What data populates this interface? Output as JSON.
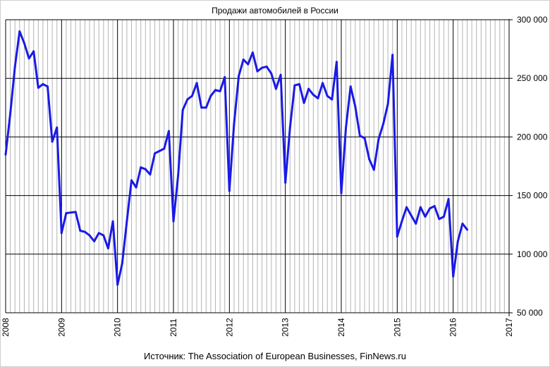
{
  "chart_data": {
    "type": "line",
    "title": "Продажи  автомобилей в России",
    "source": "Источник: The Association of European Businesses, FinNews.ru",
    "xlabel": "",
    "ylabel": "",
    "xlim": [
      2008,
      2017
    ],
    "ylim": [
      50000,
      300000
    ],
    "x_ticks": [
      "2008",
      "2009",
      "2010",
      "2011",
      "2012",
      "2013",
      "2014",
      "2015",
      "2016",
      "2017"
    ],
    "y_ticks": [
      "50 000",
      "100 000",
      "150 000",
      "200 000",
      "250 000",
      "300 000"
    ],
    "y_tick_values": [
      50000,
      100000,
      150000,
      200000,
      250000,
      300000
    ],
    "grid": {
      "major_x": true,
      "minor_x_monthly": true,
      "major_y": true
    },
    "axis_side_y": "right",
    "series": [
      {
        "color": "#1a1ae6",
        "x": [
          2008.0,
          2008.083,
          2008.167,
          2008.25,
          2008.333,
          2008.417,
          2008.5,
          2008.583,
          2008.667,
          2008.75,
          2008.833,
          2008.917,
          2009.0,
          2009.083,
          2009.167,
          2009.25,
          2009.333,
          2009.417,
          2009.5,
          2009.583,
          2009.667,
          2009.75,
          2009.833,
          2009.917,
          2010.0,
          2010.083,
          2010.167,
          2010.25,
          2010.333,
          2010.417,
          2010.5,
          2010.583,
          2010.667,
          2010.75,
          2010.833,
          2010.917,
          2011.0,
          2011.083,
          2011.167,
          2011.25,
          2011.333,
          2011.417,
          2011.5,
          2011.583,
          2011.667,
          2011.75,
          2011.833,
          2011.917,
          2012.0,
          2012.083,
          2012.167,
          2012.25,
          2012.333,
          2012.417,
          2012.5,
          2012.583,
          2012.667,
          2012.75,
          2012.833,
          2012.917,
          2013.0,
          2013.083,
          2013.167,
          2013.25,
          2013.333,
          2013.417,
          2013.5,
          2013.583,
          2013.667,
          2013.75,
          2013.833,
          2013.917,
          2014.0,
          2014.083,
          2014.167,
          2014.25,
          2014.333,
          2014.417,
          2014.5,
          2014.583,
          2014.667,
          2014.75,
          2014.833,
          2014.917,
          2015.0,
          2015.083,
          2015.167,
          2015.25,
          2015.333,
          2015.417,
          2015.5,
          2015.583,
          2015.667,
          2015.75,
          2015.833,
          2015.917,
          2016.0,
          2016.083,
          2016.167,
          2016.25
        ],
        "values": [
          185000,
          220000,
          260000,
          290000,
          280000,
          267000,
          273000,
          242000,
          245000,
          243000,
          196000,
          208000,
          118000,
          135000,
          135500,
          136000,
          120000,
          119000,
          116000,
          111000,
          118000,
          116000,
          105000,
          128000,
          74000,
          92000,
          128000,
          163000,
          157000,
          174000,
          172500,
          168000,
          186000,
          188000,
          190000,
          205000,
          128000,
          167000,
          223000,
          232000,
          235000,
          246000,
          225000,
          225000,
          235000,
          240000,
          239000,
          251000,
          154000,
          211000,
          252000,
          266000,
          262000,
          272000,
          256000,
          259000,
          260000,
          254000,
          241000,
          253000,
          161000,
          208000,
          244000,
          245000,
          229000,
          241000,
          236000,
          233000,
          246000,
          235000,
          232000,
          264000,
          152000,
          208000,
          243000,
          226000,
          201000,
          199000,
          181000,
          172000,
          198000,
          211000,
          228000,
          270000,
          115000,
          128000,
          140000,
          133000,
          126000,
          140000,
          132000,
          139000,
          141000,
          130000,
          132000,
          147000,
          81000,
          111000,
          126000,
          121000
        ]
      }
    ]
  }
}
